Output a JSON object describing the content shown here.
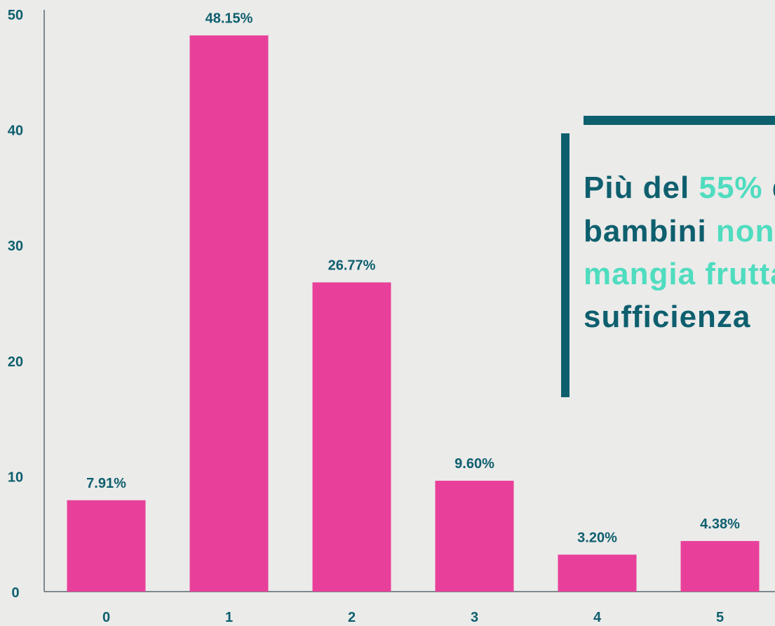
{
  "chart_data": {
    "type": "bar",
    "categories": [
      "0",
      "1",
      "2",
      "3",
      "4",
      "5"
    ],
    "values": [
      7.91,
      48.15,
      26.77,
      9.6,
      3.2,
      4.38
    ],
    "value_labels": [
      "7.91%",
      "48.15%",
      "26.77%",
      "9.60%",
      "3.20%",
      "4.38%"
    ],
    "color": "#e8409a",
    "ylim": [
      0,
      50
    ],
    "yticks": [
      0,
      10,
      20,
      30,
      40,
      50
    ],
    "grid": false,
    "annotation": [
      [
        {
          "text": "Più del ",
          "color": "#0e5f6e"
        },
        {
          "text": "55%",
          "color": "#4fdcbf"
        },
        {
          "text": " d",
          "color": "#0e5f6e"
        }
      ],
      [
        {
          "text": "bambini ",
          "color": "#0e5f6e"
        },
        {
          "text": "non",
          "color": "#4fdcbf"
        }
      ],
      [
        {
          "text": "mangia frutta",
          "color": "#4fdcbf"
        }
      ],
      [
        {
          "text": "sufficienza",
          "color": "#0e5f6e"
        }
      ]
    ]
  }
}
